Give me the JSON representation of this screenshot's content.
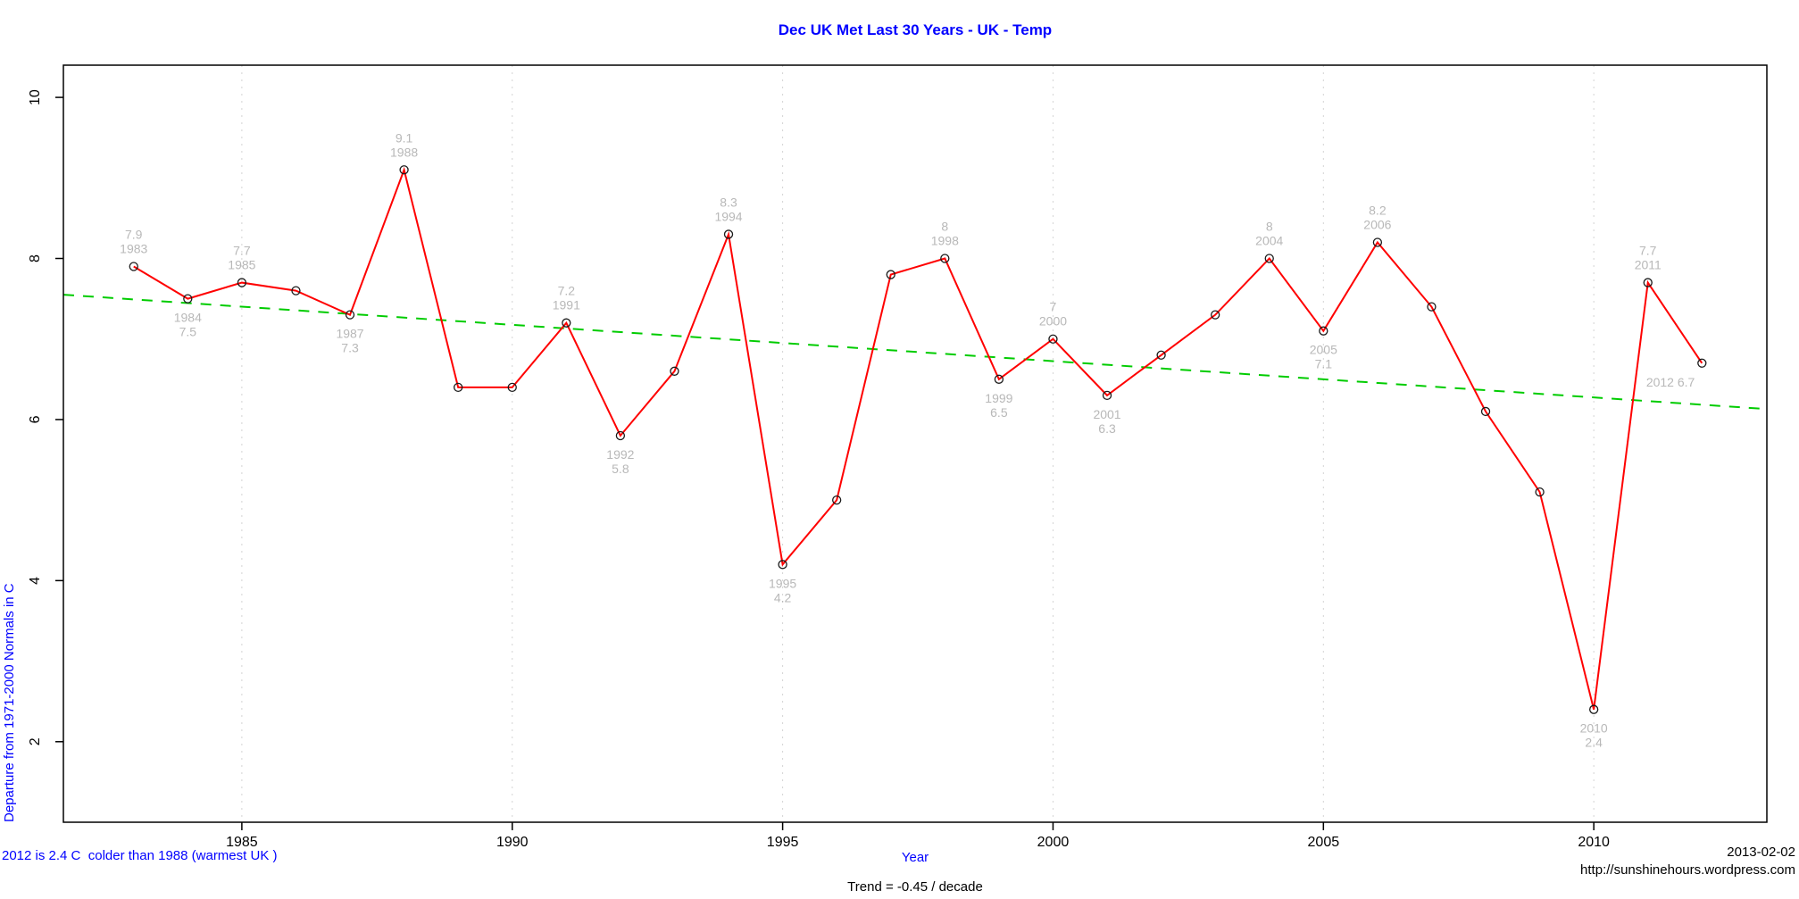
{
  "footer": {
    "note": "2012 is 2.4 C  colder than 1988 (warmest UK )",
    "date": "2013-02-02",
    "url": "http://sunshinehours.wordpress.com"
  },
  "chart_data": {
    "type": "line",
    "title": "Dec UK Met Last 30 Years - UK - Temp",
    "xlabel": "Year",
    "ylabel": "Departure from 1971-2000 Normals in C",
    "x": [
      1983,
      1984,
      1985,
      1986,
      1987,
      1988,
      1989,
      1990,
      1991,
      1992,
      1993,
      1994,
      1995,
      1996,
      1997,
      1998,
      1999,
      2000,
      2001,
      2002,
      2003,
      2004,
      2005,
      2006,
      2007,
      2008,
      2009,
      2010,
      2011,
      2012
    ],
    "values": [
      7.9,
      7.5,
      7.7,
      7.6,
      7.3,
      9.1,
      6.4,
      6.4,
      7.2,
      5.8,
      6.6,
      8.3,
      4.2,
      5.0,
      7.8,
      8.0,
      6.5,
      7.0,
      6.3,
      6.8,
      7.3,
      8.0,
      7.1,
      8.2,
      7.4,
      6.1,
      5.1,
      2.4,
      7.7,
      6.7
    ],
    "xlim": [
      1981.7,
      2013.2
    ],
    "ylim": [
      1.0,
      10.4
    ],
    "xticks": [
      1985,
      1990,
      1995,
      2000,
      2005,
      2010
    ],
    "yticks": [
      2,
      4,
      6,
      8,
      10
    ],
    "grid": "vertical dotted lines at x ticks",
    "legend": "none",
    "trend": {
      "label": "Trend = -0.45 / decade",
      "x": [
        1981.7,
        2013.2
      ],
      "y": [
        7.55,
        6.13
      ],
      "style": "dashed"
    },
    "colors": {
      "line": "#ff0000",
      "points": "#1a1a1a",
      "trend": "#00cc00",
      "title": "#0000ff",
      "axis_titles": "#0000ff",
      "tick_labels": "#000000",
      "point_labels": "#b8b8b8",
      "grid": "#d4d4d4",
      "box": "#000000"
    },
    "point_labels": [
      {
        "x": 1983,
        "lines": [
          "7.9",
          "1983"
        ],
        "pos": "above"
      },
      {
        "x": 1984,
        "lines": [
          "1984",
          "7.5"
        ],
        "pos": "below"
      },
      {
        "x": 1985,
        "lines": [
          "7.7",
          "1985"
        ],
        "pos": "above"
      },
      {
        "x": 1987,
        "lines": [
          "1987",
          "7.3"
        ],
        "pos": "below"
      },
      {
        "x": 1988,
        "lines": [
          "9.1",
          "1988"
        ],
        "pos": "above"
      },
      {
        "x": 1991,
        "lines": [
          "7.2",
          "1991"
        ],
        "pos": "above"
      },
      {
        "x": 1992,
        "lines": [
          "1992",
          "5.8"
        ],
        "pos": "below"
      },
      {
        "x": 1994,
        "lines": [
          "8.3",
          "1994"
        ],
        "pos": "above"
      },
      {
        "x": 1995,
        "lines": [
          "1995",
          "4.2"
        ],
        "pos": "below"
      },
      {
        "x": 1998,
        "lines": [
          "8",
          "1998"
        ],
        "pos": "above"
      },
      {
        "x": 1999,
        "lines": [
          "1999",
          "6.5"
        ],
        "pos": "below"
      },
      {
        "x": 2000,
        "lines": [
          "7",
          "2000"
        ],
        "pos": "above"
      },
      {
        "x": 2001,
        "lines": [
          "2001",
          "6.3"
        ],
        "pos": "below"
      },
      {
        "x": 2004,
        "lines": [
          "8",
          "2004"
        ],
        "pos": "above"
      },
      {
        "x": 2005,
        "lines": [
          "2005",
          "7.1"
        ],
        "pos": "below"
      },
      {
        "x": 2006,
        "lines": [
          "8.2",
          "2006"
        ],
        "pos": "above"
      },
      {
        "x": 2010,
        "lines": [
          "2010",
          "2.4"
        ],
        "pos": "below"
      },
      {
        "x": 2011,
        "lines": [
          "7.7",
          "2011"
        ],
        "pos": "above"
      },
      {
        "x": 2012,
        "lines": [
          "2012 6.7"
        ],
        "pos": "left"
      }
    ]
  }
}
